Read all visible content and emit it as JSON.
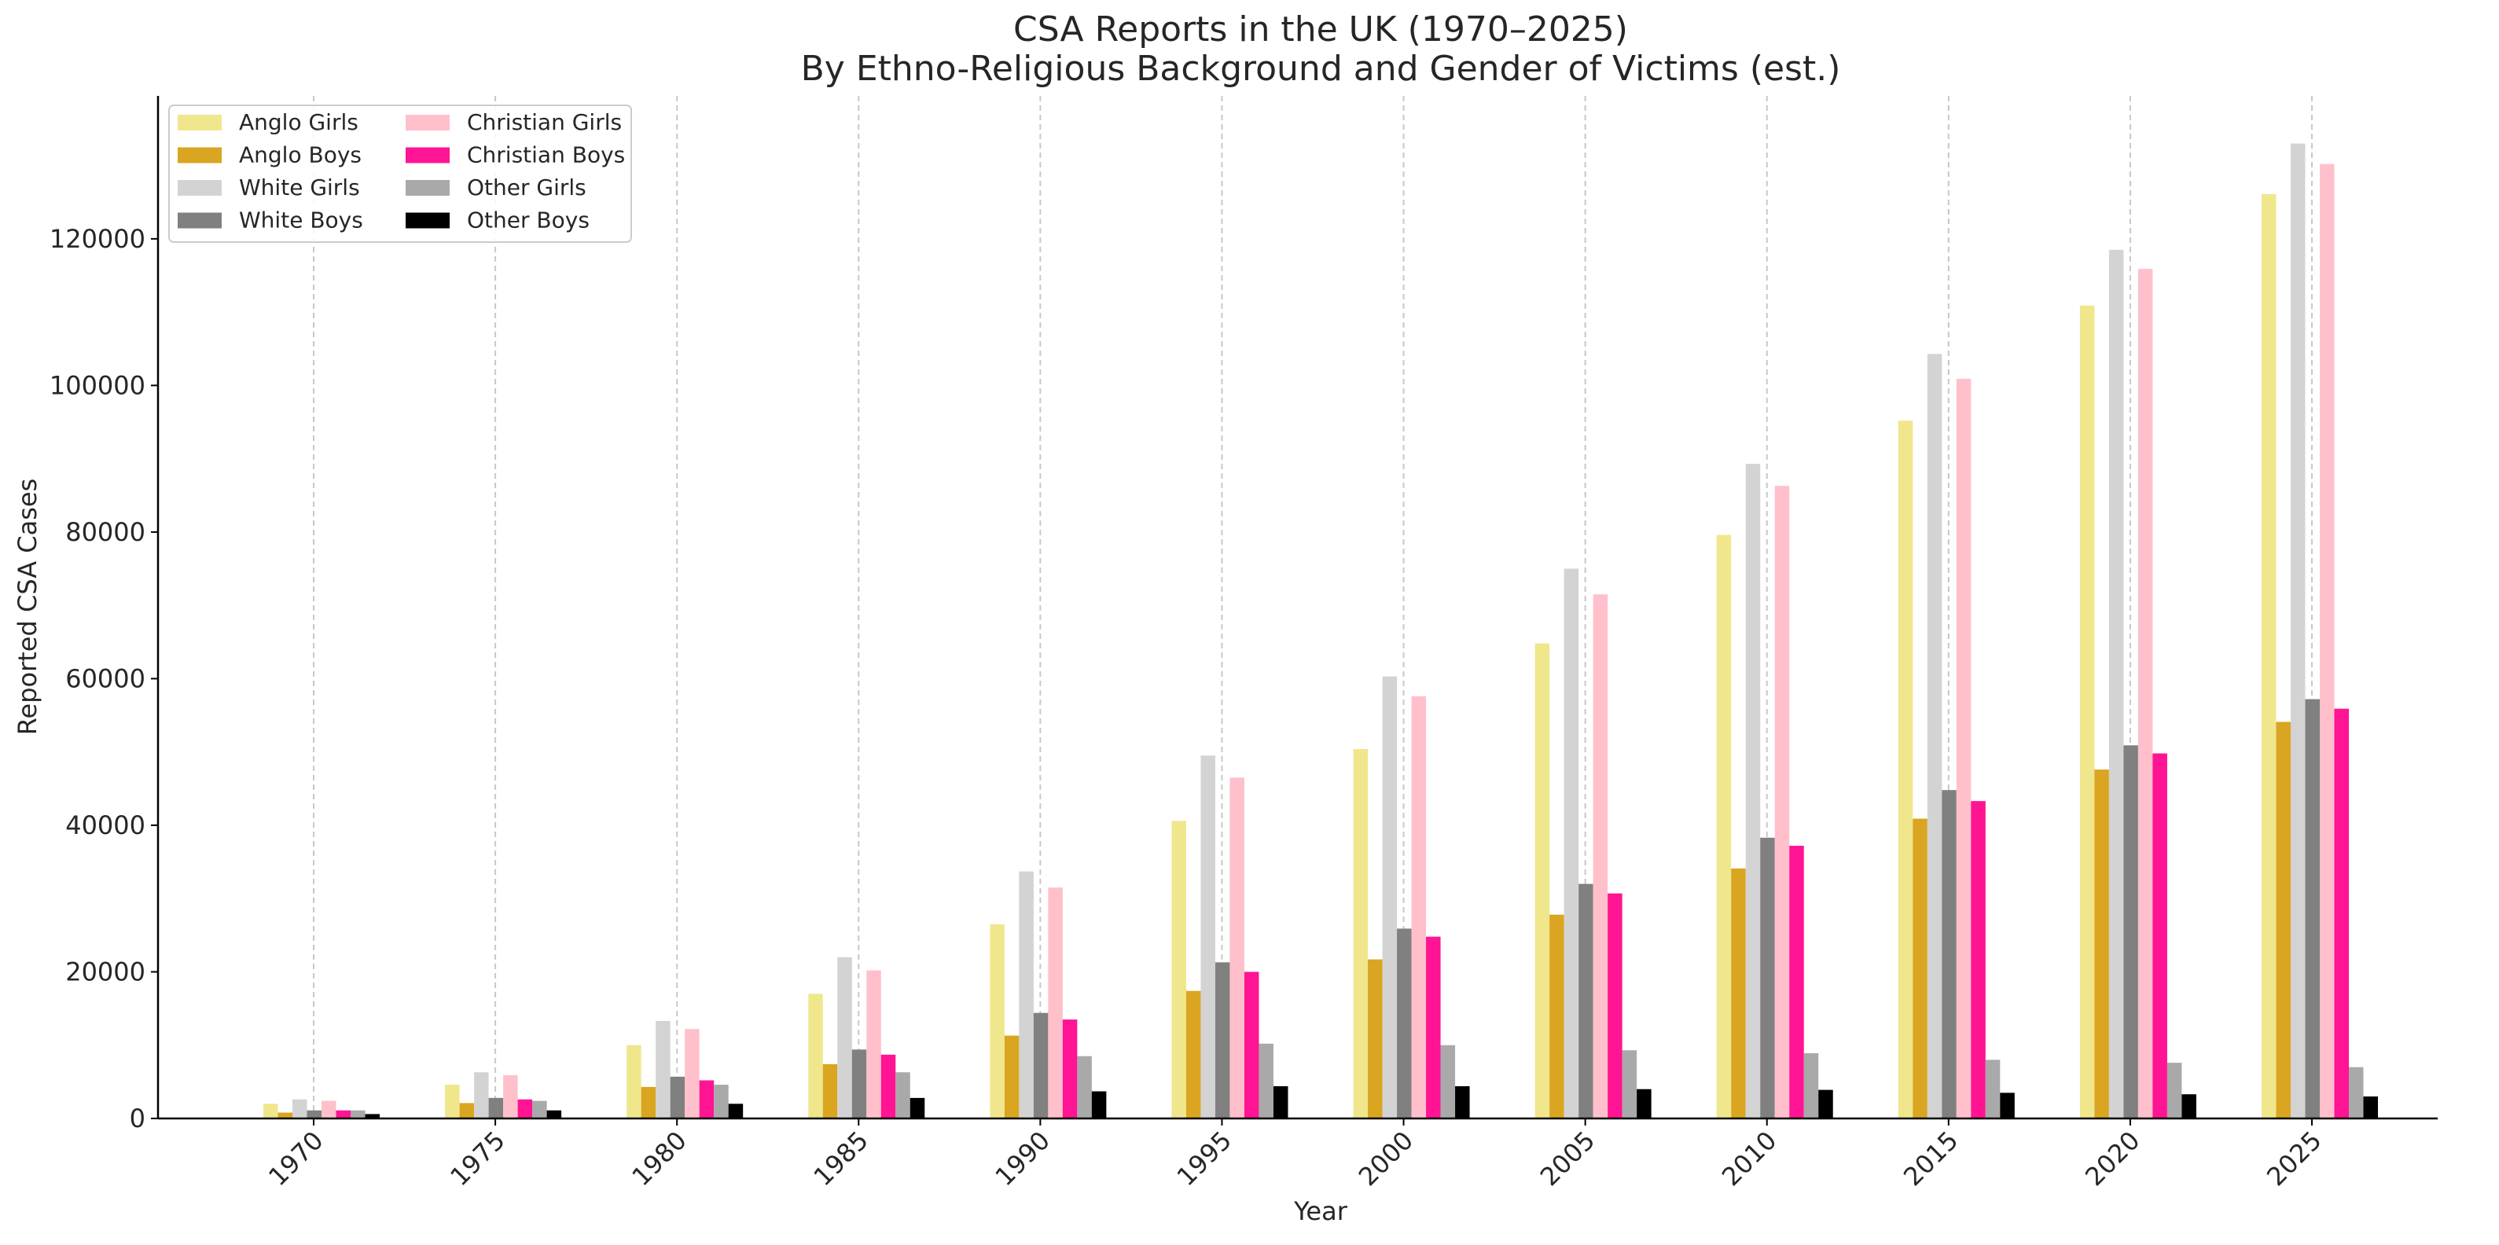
{
  "chart_data": {
    "type": "bar",
    "title": "CSA Reports in the UK (1970–2025)",
    "subtitle": "By Ethno-Religious Background and Gender of Victims (est.)",
    "xlabel": "Year",
    "ylabel": "Reported CSA Cases",
    "ylim": [
      0,
      139500
    ],
    "yticks": [
      0,
      20000,
      40000,
      60000,
      80000,
      100000,
      120000
    ],
    "grid": "vertical dashed at x ticks",
    "legend_placement": "top-left",
    "categories": [
      "1970",
      "1975",
      "1980",
      "1985",
      "1990",
      "1995",
      "2000",
      "2005",
      "2010",
      "2015",
      "2020",
      "2025"
    ],
    "series": [
      {
        "name": "Anglo Girls",
        "color": "#f0e68c",
        "values": [
          2000,
          4600,
          10000,
          17000,
          26500,
          40600,
          50400,
          64800,
          79600,
          95200,
          110900,
          126100
        ]
      },
      {
        "name": "Anglo Boys",
        "color": "#daa520",
        "values": [
          800,
          2100,
          4300,
          7400,
          11300,
          17400,
          21700,
          27800,
          34100,
          40900,
          47600,
          54100
        ]
      },
      {
        "name": "White Girls",
        "color": "#d3d3d3",
        "values": [
          2600,
          6300,
          13300,
          22000,
          33700,
          49500,
          60300,
          75000,
          89300,
          104300,
          118500,
          133000
        ]
      },
      {
        "name": "White Boys",
        "color": "#808080",
        "values": [
          1100,
          2800,
          5700,
          9400,
          14400,
          21300,
          25900,
          32000,
          38300,
          44800,
          50900,
          57200
        ]
      },
      {
        "name": "Christian Girls",
        "color": "#ffc0cb",
        "values": [
          2400,
          5900,
          12200,
          20200,
          31500,
          46500,
          57600,
          71500,
          86300,
          100900,
          115900,
          130200
        ]
      },
      {
        "name": "Christian Boys",
        "color": "#ff1493",
        "values": [
          1100,
          2600,
          5200,
          8700,
          13500,
          20000,
          24800,
          30700,
          37200,
          43300,
          49800,
          55900
        ]
      },
      {
        "name": "Other Girls",
        "color": "#a9a9a9",
        "values": [
          1100,
          2400,
          4600,
          6300,
          8500,
          10200,
          10000,
          9300,
          8900,
          8000,
          7600,
          7000
        ]
      },
      {
        "name": "Other Boys",
        "color": "#000000",
        "values": [
          600,
          1100,
          2000,
          2800,
          3700,
          4400,
          4400,
          4000,
          3900,
          3500,
          3300,
          3000
        ]
      }
    ]
  }
}
